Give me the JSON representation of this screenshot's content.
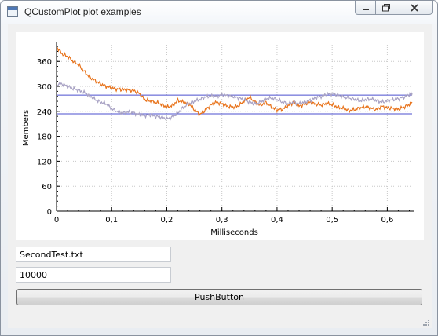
{
  "window": {
    "title": "QCustomPlot plot examples"
  },
  "inputs": {
    "filename": "SecondTest.txt",
    "count": "10000"
  },
  "button": {
    "label": "PushButton"
  },
  "colors": {
    "series_orange": "#e8731b",
    "series_gray": "#a8a2c4",
    "hlines": "#4b4fcf"
  },
  "chart_data": {
    "type": "line",
    "xlabel": "Milliseconds",
    "ylabel": "Members",
    "xlim": [
      0,
      0.645
    ],
    "ylim": [
      0,
      400
    ],
    "xticks": [
      {
        "v": 0,
        "label": "0"
      },
      {
        "v": 0.1,
        "label": "0,1"
      },
      {
        "v": 0.2,
        "label": "0,2"
      },
      {
        "v": 0.3,
        "label": "0,3"
      },
      {
        "v": 0.4,
        "label": "0,4"
      },
      {
        "v": 0.5,
        "label": "0,5"
      },
      {
        "v": 0.6,
        "label": "0,6"
      }
    ],
    "yticks": [
      {
        "v": 0,
        "label": "0"
      },
      {
        "v": 60,
        "label": "60"
      },
      {
        "v": 120,
        "label": "120"
      },
      {
        "v": 180,
        "label": "180"
      },
      {
        "v": 240,
        "label": "240"
      },
      {
        "v": 300,
        "label": "300"
      },
      {
        "v": 360,
        "label": "360"
      }
    ],
    "grid": true,
    "hlines": [
      279,
      234
    ],
    "series": [
      {
        "color": "#e8731b",
        "points": [
          [
            0,
            395
          ],
          [
            0.01,
            378
          ],
          [
            0.02,
            372
          ],
          [
            0.03,
            360
          ],
          [
            0.04,
            352
          ],
          [
            0.05,
            336
          ],
          [
            0.06,
            322
          ],
          [
            0.07,
            314
          ],
          [
            0.08,
            306
          ],
          [
            0.09,
            300
          ],
          [
            0.1,
            296
          ],
          [
            0.11,
            293
          ],
          [
            0.12,
            292
          ],
          [
            0.13,
            291
          ],
          [
            0.14,
            290
          ],
          [
            0.15,
            283
          ],
          [
            0.16,
            268
          ],
          [
            0.17,
            264
          ],
          [
            0.18,
            262
          ],
          [
            0.19,
            257
          ],
          [
            0.2,
            250
          ],
          [
            0.21,
            254
          ],
          [
            0.22,
            266
          ],
          [
            0.23,
            262
          ],
          [
            0.24,
            258
          ],
          [
            0.25,
            244
          ],
          [
            0.26,
            232
          ],
          [
            0.27,
            243
          ],
          [
            0.28,
            255
          ],
          [
            0.29,
            262
          ],
          [
            0.3,
            258
          ],
          [
            0.31,
            252
          ],
          [
            0.32,
            250
          ],
          [
            0.33,
            253
          ],
          [
            0.34,
            265
          ],
          [
            0.35,
            274
          ],
          [
            0.36,
            262
          ],
          [
            0.37,
            254
          ],
          [
            0.38,
            262
          ],
          [
            0.39,
            250
          ],
          [
            0.4,
            243
          ],
          [
            0.41,
            245
          ],
          [
            0.42,
            253
          ],
          [
            0.43,
            262
          ],
          [
            0.44,
            252
          ],
          [
            0.45,
            257
          ],
          [
            0.46,
            262
          ],
          [
            0.47,
            257
          ],
          [
            0.48,
            255
          ],
          [
            0.49,
            259
          ],
          [
            0.5,
            256
          ],
          [
            0.51,
            250
          ],
          [
            0.52,
            247
          ],
          [
            0.53,
            242
          ],
          [
            0.54,
            244
          ],
          [
            0.55,
            248
          ],
          [
            0.56,
            251
          ],
          [
            0.57,
            247
          ],
          [
            0.58,
            244
          ],
          [
            0.59,
            252
          ],
          [
            0.6,
            248
          ],
          [
            0.61,
            247
          ],
          [
            0.62,
            245
          ],
          [
            0.63,
            250
          ],
          [
            0.64,
            256
          ],
          [
            0.645,
            262
          ]
        ]
      },
      {
        "color": "#a8a2c4",
        "points": [
          [
            0,
            304
          ],
          [
            0.01,
            306
          ],
          [
            0.02,
            300
          ],
          [
            0.03,
            295
          ],
          [
            0.04,
            290
          ],
          [
            0.05,
            285
          ],
          [
            0.06,
            278
          ],
          [
            0.07,
            268
          ],
          [
            0.08,
            262
          ],
          [
            0.09,
            258
          ],
          [
            0.1,
            246
          ],
          [
            0.11,
            240
          ],
          [
            0.12,
            236
          ],
          [
            0.13,
            238
          ],
          [
            0.14,
            236
          ],
          [
            0.15,
            232
          ],
          [
            0.16,
            230
          ],
          [
            0.17,
            231
          ],
          [
            0.18,
            228
          ],
          [
            0.19,
            226
          ],
          [
            0.2,
            222
          ],
          [
            0.21,
            226
          ],
          [
            0.22,
            236
          ],
          [
            0.23,
            250
          ],
          [
            0.24,
            258
          ],
          [
            0.25,
            264
          ],
          [
            0.26,
            268
          ],
          [
            0.27,
            275
          ],
          [
            0.28,
            277
          ],
          [
            0.29,
            276
          ],
          [
            0.3,
            279
          ],
          [
            0.31,
            278
          ],
          [
            0.32,
            276
          ],
          [
            0.33,
            272
          ],
          [
            0.34,
            268
          ],
          [
            0.35,
            262
          ],
          [
            0.36,
            258
          ],
          [
            0.37,
            262
          ],
          [
            0.38,
            270
          ],
          [
            0.39,
            272
          ],
          [
            0.4,
            268
          ],
          [
            0.41,
            262
          ],
          [
            0.42,
            258
          ],
          [
            0.43,
            262
          ],
          [
            0.44,
            258
          ],
          [
            0.45,
            262
          ],
          [
            0.46,
            266
          ],
          [
            0.47,
            272
          ],
          [
            0.48,
            276
          ],
          [
            0.49,
            281
          ],
          [
            0.5,
            282
          ],
          [
            0.51,
            279
          ],
          [
            0.52,
            275
          ],
          [
            0.53,
            272
          ],
          [
            0.54,
            269
          ],
          [
            0.55,
            265
          ],
          [
            0.56,
            268
          ],
          [
            0.57,
            270
          ],
          [
            0.58,
            266
          ],
          [
            0.59,
            262
          ],
          [
            0.6,
            265
          ],
          [
            0.61,
            268
          ],
          [
            0.62,
            270
          ],
          [
            0.63,
            274
          ],
          [
            0.64,
            280
          ],
          [
            0.645,
            283
          ]
        ]
      }
    ]
  }
}
